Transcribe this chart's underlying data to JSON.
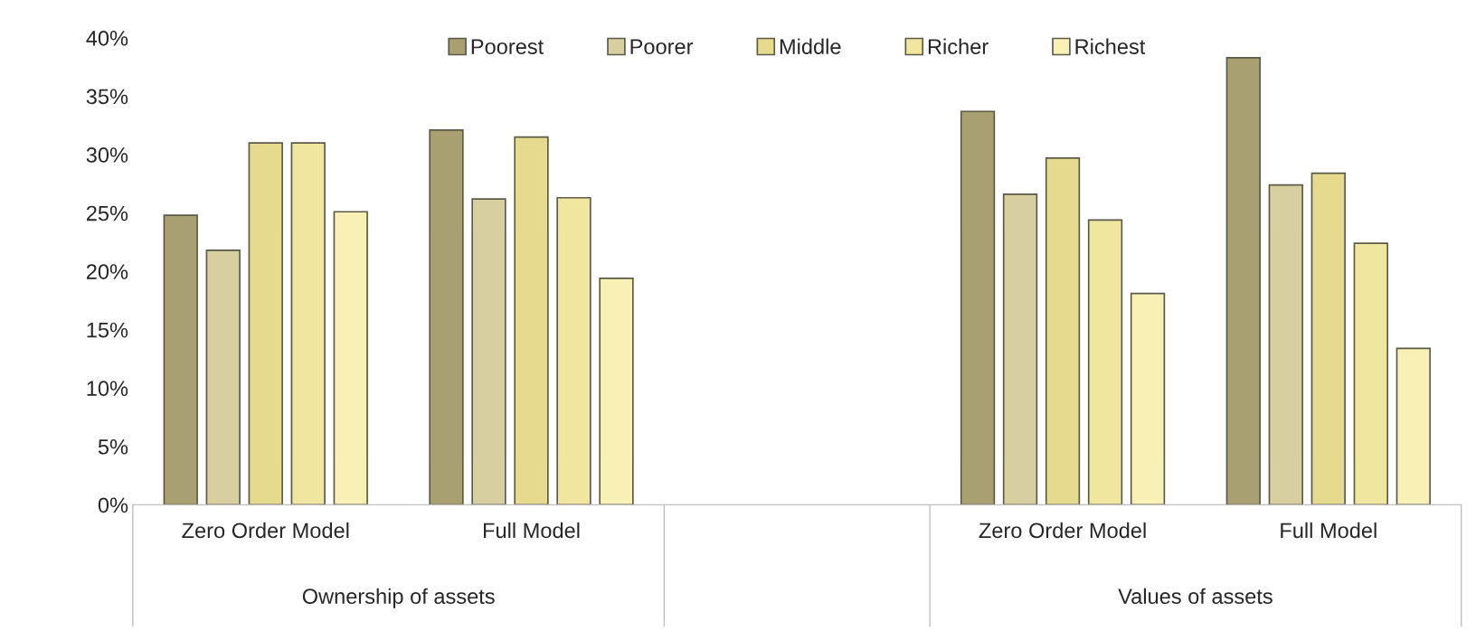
{
  "chart_data": {
    "type": "bar",
    "categories": [
      "Zero Order Model",
      "Full Model",
      null,
      "Zero Order Model",
      "Full Model"
    ],
    "series": [
      {
        "name": "Poorest",
        "color": "#a8a070",
        "values": [
          24.8,
          32.1,
          null,
          33.7,
          38.3
        ]
      },
      {
        "name": "Poorer",
        "color": "#d8cfa0",
        "values": [
          21.8,
          26.2,
          null,
          26.6,
          27.4
        ]
      },
      {
        "name": "Middle",
        "color": "#e6da8e",
        "values": [
          31.0,
          31.5,
          null,
          29.7,
          28.4
        ]
      },
      {
        "name": "Richer",
        "color": "#f0e6a0",
        "values": [
          31.0,
          26.3,
          null,
          24.4,
          22.4
        ]
      },
      {
        "name": "Richest",
        "color": "#f8f0b4",
        "values": [
          25.1,
          19.4,
          null,
          18.1,
          13.4
        ]
      }
    ],
    "annotations": [
      "Ownership of assets",
      "Values of assets"
    ],
    "ylim": [
      0,
      40
    ],
    "yticks": [
      {
        "value": 0,
        "label": "0%"
      },
      {
        "value": 5,
        "label": "5%"
      },
      {
        "value": 10,
        "label": "10%"
      },
      {
        "value": 15,
        "label": "15%"
      },
      {
        "value": 20,
        "label": "20%"
      },
      {
        "value": 25,
        "label": "25%"
      },
      {
        "value": 30,
        "label": "30%"
      },
      {
        "value": 35,
        "label": "35%"
      },
      {
        "value": 40,
        "label": "40%"
      }
    ],
    "grid": false,
    "legend": "top"
  }
}
